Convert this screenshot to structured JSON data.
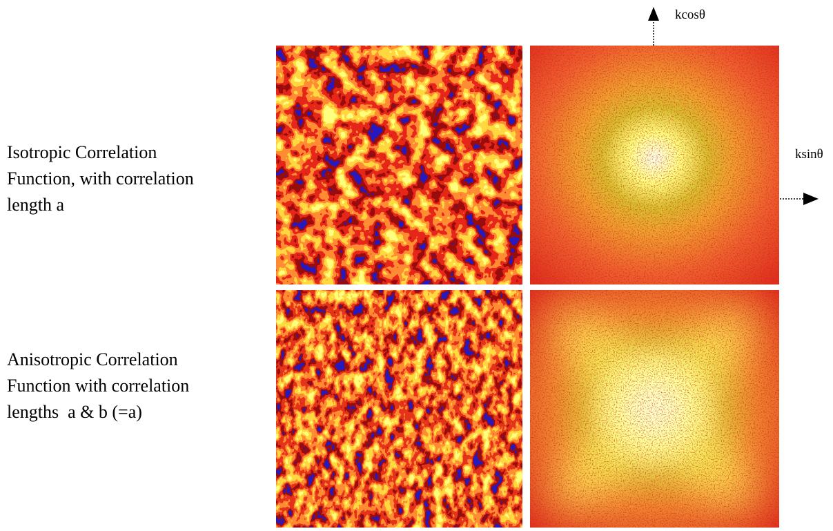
{
  "rows": [
    {
      "label": [
        "Isotropic Correlation",
        "Function, with correlation",
        "length a"
      ]
    },
    {
      "label": [
        "Anisotropic Correlation",
        "Function with correlation",
        "lengths  a & b (=a)"
      ]
    }
  ],
  "axes": {
    "vertical": "kcosθ",
    "horizontal": "ksinθ"
  }
}
